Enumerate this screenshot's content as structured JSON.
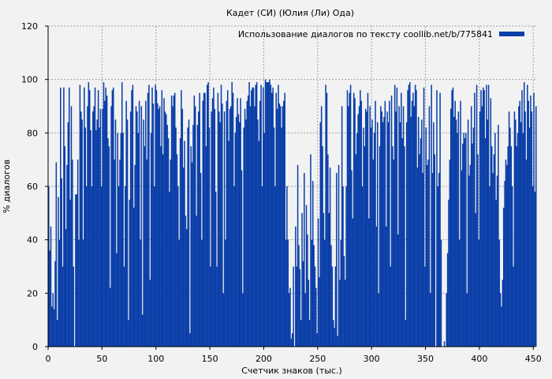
{
  "chart_data": {
    "type": "bar",
    "title": "Кадет (СИ) (Юлия (Ли) Ода)",
    "xlabel": "Счетчик знаков (тыс.)",
    "ylabel": "% диалогов",
    "xlim": [
      0,
      452
    ],
    "ylim": [
      0,
      120
    ],
    "xticks": [
      0,
      50,
      100,
      150,
      200,
      250,
      300,
      350,
      400,
      450
    ],
    "yticks": [
      0,
      20,
      40,
      60,
      80,
      100,
      120
    ],
    "grid": true,
    "legend_position": "top-right",
    "series": [
      {
        "name": "Использование диалогов по тексту coollib.net/b/775841",
        "color": "#0a3ea8",
        "x_step": 1,
        "values": [
          60,
          36,
          45,
          15,
          20,
          14,
          32,
          69,
          10,
          56,
          40,
          97,
          63,
          30,
          97,
          75,
          44,
          68,
          84,
          97,
          55,
          90,
          70,
          30,
          0,
          57,
          57,
          70,
          40,
          98,
          88,
          85,
          40,
          97,
          82,
          60,
          90,
          99,
          96,
          81,
          60,
          88,
          90,
          97,
          81,
          85,
          96,
          82,
          89,
          60,
          89,
          99,
          92,
          97,
          94,
          78,
          75,
          22,
          90,
          96,
          97,
          70,
          85,
          35,
          80,
          60,
          70,
          80,
          99,
          80,
          30,
          60,
          92,
          85,
          10,
          55,
          88,
          96,
          98,
          52,
          68,
          90,
          88,
          80,
          92,
          40,
          90,
          12,
          85,
          75,
          92,
          70,
          95,
          98,
          25,
          80,
          97,
          91,
          60,
          98,
          96,
          91,
          89,
          90,
          75,
          96,
          72,
          93,
          88,
          87,
          83,
          78,
          58,
          70,
          94,
          90,
          94,
          95,
          82,
          72,
          60,
          40,
          78,
          96,
          89,
          67,
          77,
          49,
          44,
          82,
          85,
          5,
          75,
          69,
          83,
          94,
          90,
          49,
          83,
          88,
          95,
          65,
          40,
          92,
          95,
          95,
          75,
          98,
          99,
          82,
          30,
          88,
          93,
          97,
          89,
          58,
          30,
          95,
          88,
          84,
          98,
          91,
          20,
          88,
          40,
          92,
          96,
          77,
          89,
          90,
          99,
          95,
          60,
          80,
          86,
          93,
          87,
          84,
          93,
          66,
          20,
          82,
          89,
          85,
          92,
          94,
          99,
          90,
          96,
          97,
          97,
          90,
          98,
          99,
          85,
          77,
          92,
          98,
          60,
          97,
          80,
          100,
          99,
          99,
          99,
          100,
          98,
          95,
          97,
          82,
          60,
          95,
          89,
          98,
          91,
          90,
          82,
          90,
          92,
          95,
          40,
          60,
          40,
          20,
          22,
          3,
          5,
          30,
          0,
          45,
          30,
          68,
          38,
          29,
          10,
          50,
          32,
          65,
          20,
          53,
          42,
          25,
          10,
          72,
          40,
          62,
          38,
          30,
          22,
          5,
          48,
          26,
          84,
          90,
          75,
          50,
          40,
          98,
          95,
          72,
          50,
          67,
          38,
          30,
          10,
          7,
          30,
          65,
          4,
          68,
          25,
          40,
          90,
          60,
          34,
          25,
          60,
          96,
          90,
          95,
          98,
          66,
          48,
          95,
          93,
          72,
          80,
          87,
          90,
          96,
          92,
          60,
          82,
          75,
          89,
          88,
          95,
          48,
          90,
          82,
          85,
          70,
          80,
          92,
          45,
          84,
          20,
          75,
          90,
          88,
          84,
          86,
          92,
          45,
          88,
          84,
          92,
          30,
          94,
          75,
          70,
          98,
          88,
          97,
          42,
          90,
          84,
          95,
          78,
          90,
          75,
          10,
          84,
          96,
          98,
          99,
          86,
          92,
          95,
          90,
          98,
          96,
          67,
          86,
          72,
          78,
          85,
          65,
          97,
          30,
          82,
          68,
          70,
          90,
          20,
          98,
          65,
          84,
          72,
          0,
          96,
          60,
          65,
          95,
          40,
          0,
          0,
          2,
          0,
          20,
          35,
          55,
          70,
          89,
          96,
          97,
          86,
          92,
          85,
          80,
          88,
          40,
          92,
          66,
          76,
          80,
          78,
          80,
          20,
          85,
          64,
          68,
          90,
          76,
          82,
          95,
          50,
          98,
          72,
          40,
          88,
          96,
          90,
          97,
          96,
          78,
          98,
          85,
          98,
          60,
          93,
          75,
          65,
          72,
          80,
          55,
          64,
          83,
          40,
          20,
          15,
          25,
          52,
          62,
          70,
          68,
          75,
          88,
          82,
          75,
          60,
          30,
          88,
          85,
          75,
          80,
          90,
          92,
          84,
          96,
          80,
          99,
          88,
          70,
          98,
          92,
          82,
          94,
          88,
          60,
          95,
          58,
          90
        ]
      }
    ]
  }
}
